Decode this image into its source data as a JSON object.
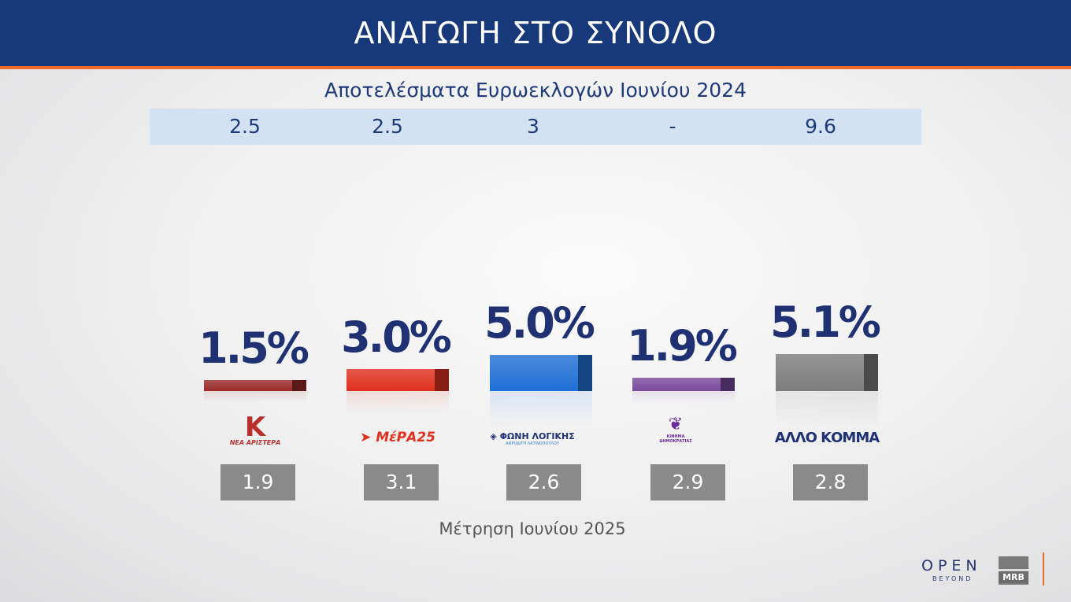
{
  "header": {
    "title": "ΑΝΑΓΩΓΗ ΣΤΟ ΣΥΝΟΛΟ"
  },
  "previous": {
    "title": "Αποτελέσματα Ευρωεκλογών Ιουνίου 2024",
    "values": [
      "2.5",
      "2.5",
      "3",
      "-",
      "9.6"
    ]
  },
  "chart_data": {
    "type": "bar",
    "categories": [
      "ΝΕΑ ΑΡΙΣΤΕΡΑ",
      "ΜέΡΑ25",
      "ΦΩΝΗ ΛΟΓΙΚΗΣ",
      "ΚΙΝΗΜΑ ΔΗΜΟΚΡΑΤΙΑΣ",
      "ΑΛΛΟ ΚΟΜΜΑ"
    ],
    "values": [
      1.5,
      3.0,
      5.0,
      1.9,
      5.1
    ],
    "labels": [
      "1.5%",
      "3.0%",
      "5.0%",
      "1.9%",
      "5.1%"
    ],
    "colors": [
      "#9b2a2a",
      "#e0301e",
      "#1f6fd6",
      "#7a4a9c",
      "#7d7d7d"
    ],
    "secondary_values": [
      "1.9",
      "3.1",
      "2.6",
      "2.9",
      "2.8"
    ],
    "footer": "Μέτρηση Ιουνίου 2025"
  },
  "logos": {
    "nea_aristera": "ΝΕΑ ΑΡΙΣΤΕΡΑ",
    "mera25": "ΜέΡΑ25",
    "foni_logikis": "ΦΩΝΗ ΛΟΓΙΚΗΣ",
    "foni_logikis_sub": "ΑΦΡΟΔΙΤΗ ΛΑΤΙΝΟΠΟΥΛΟΥ",
    "kinima": "ΚΙΝΗΜΑ ΔΗΜΟΚΡΑΤΙΑΣ",
    "allo": "ΑΛΛΟ ΚΟΜΜΑ"
  },
  "branding": {
    "open": "OPEN",
    "beyond": "BEYOND",
    "mrb": "MRB"
  }
}
